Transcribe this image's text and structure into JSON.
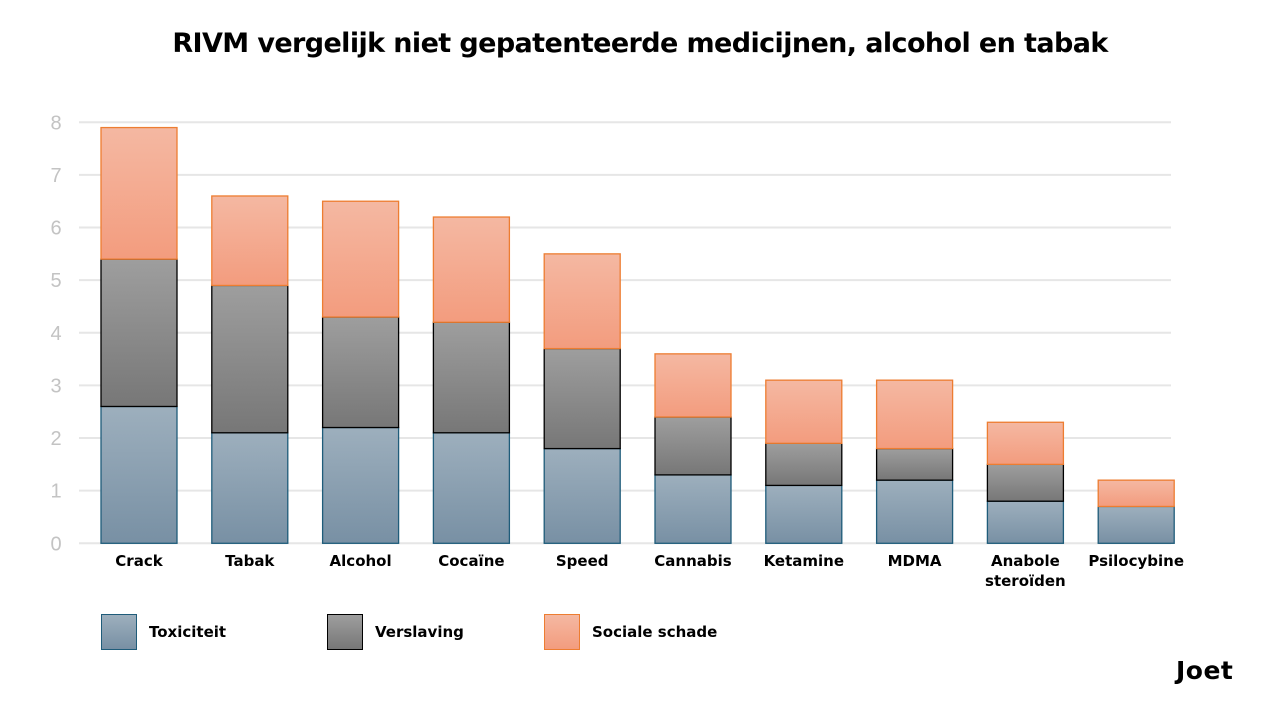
{
  "chart_data": {
    "type": "bar",
    "stacked": true,
    "title": "RIVM vergelijk niet gepatenteerde medicijnen, alcohol en tabak",
    "xlabel": "",
    "ylabel": "",
    "ylim": [
      0,
      8
    ],
    "yticks": [
      "0",
      "1",
      "2",
      "3",
      "4",
      "5",
      "6",
      "7",
      "8"
    ],
    "grid": true,
    "legend_position": "bottom-left",
    "categories": [
      [
        "Crack"
      ],
      [
        "Tabak"
      ],
      [
        "Alcohol"
      ],
      [
        "Cocaïne"
      ],
      [
        "Speed"
      ],
      [
        "Cannabis"
      ],
      [
        "Ketamine"
      ],
      [
        "MDMA"
      ],
      [
        "Anabole",
        "steroïden"
      ],
      [
        "Psilocybine"
      ]
    ],
    "series": [
      {
        "name": "Toxiciteit",
        "color_top": "#9dafbd",
        "color_bottom": "#7890a4",
        "stroke": "#1f5c7a",
        "values": [
          2.6,
          2.1,
          2.2,
          2.1,
          1.8,
          1.3,
          1.1,
          1.2,
          0.8,
          0.7
        ]
      },
      {
        "name": "Verslaving",
        "color_top": "#9e9e9e",
        "color_bottom": "#777777",
        "stroke": "#000000",
        "values": [
          2.8,
          2.8,
          2.1,
          2.1,
          1.9,
          1.1,
          0.8,
          0.6,
          0.7,
          0.0
        ]
      },
      {
        "name": "Sociale schade",
        "color_top": "#f4b8a2",
        "color_bottom": "#f39c7e",
        "stroke": "#ed7d31",
        "values": [
          2.5,
          1.7,
          2.2,
          2.0,
          1.8,
          1.2,
          1.2,
          1.3,
          0.8,
          0.5
        ]
      }
    ]
  },
  "branding": {
    "logo_text": "Joet"
  }
}
